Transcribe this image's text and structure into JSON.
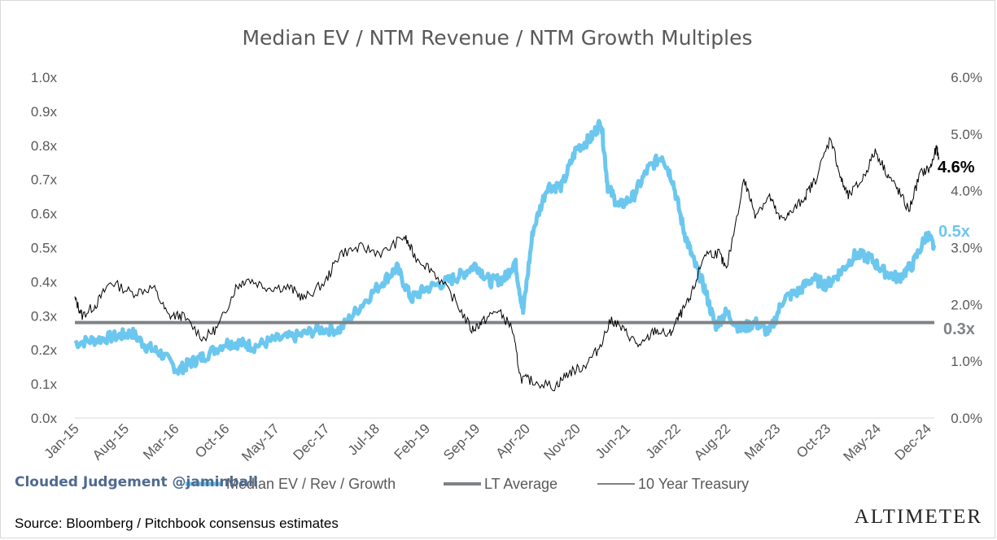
{
  "chart_data": {
    "type": "line",
    "title": "Median EV / NTM Revenue / NTM Growth Multiples",
    "left_axis": {
      "ticks": [
        "0.0x",
        "0.1x",
        "0.2x",
        "0.3x",
        "0.4x",
        "0.5x",
        "0.6x",
        "0.7x",
        "0.8x",
        "0.9x",
        "1.0x"
      ],
      "min": 0,
      "max": 1.0
    },
    "right_axis": {
      "ticks": [
        "0.0%",
        "1.0%",
        "2.0%",
        "3.0%",
        "4.0%",
        "5.0%",
        "6.0%"
      ],
      "min": 0,
      "max": 6.0
    },
    "x_labels": [
      "Jan-15",
      "Aug-15",
      "Mar-16",
      "Oct-16",
      "May-17",
      "Dec-17",
      "Jul-18",
      "Feb-19",
      "Sep-19",
      "Apr-20",
      "Nov-20",
      "Jun-21",
      "Jan-22",
      "Aug-22",
      "Mar-23",
      "Oct-23",
      "May-24",
      "Dec-24"
    ],
    "x_range": [
      "2015-01",
      "2025-01"
    ],
    "series": [
      {
        "name": "Median EV / Rev / Growth",
        "axis": "left",
        "color": "#6cc7ef",
        "points": [
          [
            "2015-01-01",
            0.22
          ],
          [
            "2015-04-01",
            0.23
          ],
          [
            "2015-07-01",
            0.24
          ],
          [
            "2015-09-01",
            0.25
          ],
          [
            "2015-11-01",
            0.21
          ],
          [
            "2016-01-01",
            0.19
          ],
          [
            "2016-03-15",
            0.14
          ],
          [
            "2016-05-01",
            0.16
          ],
          [
            "2016-07-01",
            0.18
          ],
          [
            "2016-10-01",
            0.22
          ],
          [
            "2016-12-01",
            0.22
          ],
          [
            "2017-02-01",
            0.21
          ],
          [
            "2017-05-01",
            0.23
          ],
          [
            "2017-08-01",
            0.24
          ],
          [
            "2017-11-01",
            0.26
          ],
          [
            "2018-02-01",
            0.26
          ],
          [
            "2018-05-01",
            0.33
          ],
          [
            "2018-08-01",
            0.4
          ],
          [
            "2018-10-01",
            0.44
          ],
          [
            "2018-12-01",
            0.35
          ],
          [
            "2019-02-01",
            0.38
          ],
          [
            "2019-05-01",
            0.4
          ],
          [
            "2019-07-01",
            0.42
          ],
          [
            "2019-09-01",
            0.45
          ],
          [
            "2019-11-01",
            0.4
          ],
          [
            "2020-01-01",
            0.41
          ],
          [
            "2020-02-15",
            0.46
          ],
          [
            "2020-03-20",
            0.31
          ],
          [
            "2020-05-01",
            0.55
          ],
          [
            "2020-07-01",
            0.68
          ],
          [
            "2020-09-01",
            0.68
          ],
          [
            "2020-11-01",
            0.79
          ],
          [
            "2021-01-01",
            0.82
          ],
          [
            "2021-02-15",
            0.87
          ],
          [
            "2021-03-15",
            0.68
          ],
          [
            "2021-05-01",
            0.62
          ],
          [
            "2021-07-01",
            0.65
          ],
          [
            "2021-09-01",
            0.73
          ],
          [
            "2021-11-01",
            0.77
          ],
          [
            "2021-12-15",
            0.7
          ],
          [
            "2022-02-01",
            0.55
          ],
          [
            "2022-03-15",
            0.46
          ],
          [
            "2022-05-01",
            0.38
          ],
          [
            "2022-06-15",
            0.27
          ],
          [
            "2022-08-01",
            0.31
          ],
          [
            "2022-10-01",
            0.26
          ],
          [
            "2022-12-01",
            0.28
          ],
          [
            "2023-02-01",
            0.25
          ],
          [
            "2023-04-01",
            0.35
          ],
          [
            "2023-06-01",
            0.37
          ],
          [
            "2023-08-01",
            0.41
          ],
          [
            "2023-10-01",
            0.39
          ],
          [
            "2023-12-01",
            0.43
          ],
          [
            "2024-02-01",
            0.48
          ],
          [
            "2024-04-01",
            0.47
          ],
          [
            "2024-06-01",
            0.43
          ],
          [
            "2024-08-01",
            0.41
          ],
          [
            "2024-10-01",
            0.45
          ],
          [
            "2024-12-01",
            0.54
          ],
          [
            "2025-01-01",
            0.5
          ]
        ]
      },
      {
        "name": "LT Average",
        "axis": "left",
        "color": "#7f8386",
        "value": 0.28
      },
      {
        "name": "10 Year Treasury",
        "axis": "right",
        "color": "#000000",
        "points": [
          [
            "2015-01-01",
            2.1
          ],
          [
            "2015-02-01",
            1.8
          ],
          [
            "2015-04-01",
            2.0
          ],
          [
            "2015-06-01",
            2.4
          ],
          [
            "2015-09-01",
            2.2
          ],
          [
            "2015-12-01",
            2.3
          ],
          [
            "2016-02-01",
            1.8
          ],
          [
            "2016-04-01",
            1.8
          ],
          [
            "2016-07-01",
            1.4
          ],
          [
            "2016-09-01",
            1.6
          ],
          [
            "2016-11-15",
            2.3
          ],
          [
            "2017-01-01",
            2.45
          ],
          [
            "2017-04-01",
            2.3
          ],
          [
            "2017-07-01",
            2.3
          ],
          [
            "2017-09-01",
            2.1
          ],
          [
            "2017-12-01",
            2.4
          ],
          [
            "2018-02-01",
            2.9
          ],
          [
            "2018-05-01",
            3.0
          ],
          [
            "2018-08-01",
            2.9
          ],
          [
            "2018-11-01",
            3.2
          ],
          [
            "2018-12-15",
            2.85
          ],
          [
            "2019-03-01",
            2.6
          ],
          [
            "2019-06-01",
            2.1
          ],
          [
            "2019-08-15",
            1.55
          ],
          [
            "2019-10-01",
            1.7
          ],
          [
            "2019-12-01",
            1.9
          ],
          [
            "2020-02-01",
            1.6
          ],
          [
            "2020-03-10",
            0.7
          ],
          [
            "2020-05-01",
            0.65
          ],
          [
            "2020-08-01",
            0.55
          ],
          [
            "2020-10-01",
            0.8
          ],
          [
            "2020-12-01",
            0.9
          ],
          [
            "2021-02-01",
            1.2
          ],
          [
            "2021-03-31",
            1.74
          ],
          [
            "2021-06-01",
            1.5
          ],
          [
            "2021-08-01",
            1.25
          ],
          [
            "2021-10-01",
            1.55
          ],
          [
            "2021-12-01",
            1.45
          ],
          [
            "2022-01-15",
            1.8
          ],
          [
            "2022-03-01",
            2.1
          ],
          [
            "2022-05-01",
            2.9
          ],
          [
            "2022-07-01",
            2.9
          ],
          [
            "2022-08-01",
            2.6
          ],
          [
            "2022-10-15",
            4.2
          ],
          [
            "2022-12-01",
            3.6
          ],
          [
            "2023-02-01",
            3.9
          ],
          [
            "2023-03-15",
            3.5
          ],
          [
            "2023-05-01",
            3.6
          ],
          [
            "2023-07-01",
            3.9
          ],
          [
            "2023-08-15",
            4.2
          ],
          [
            "2023-10-19",
            4.95
          ],
          [
            "2023-12-01",
            4.2
          ],
          [
            "2024-01-01",
            3.9
          ],
          [
            "2024-03-01",
            4.2
          ],
          [
            "2024-04-25",
            4.7
          ],
          [
            "2024-06-15",
            4.3
          ],
          [
            "2024-08-01",
            4.0
          ],
          [
            "2024-09-15",
            3.65
          ],
          [
            "2024-11-01",
            4.3
          ],
          [
            "2024-12-15",
            4.4
          ],
          [
            "2025-01-10",
            4.75
          ],
          [
            "2025-01-20",
            4.6
          ]
        ]
      }
    ],
    "end_labels": {
      "treasury": "4.6%",
      "multiple": "0.5x",
      "average": "0.3x"
    },
    "legend_position": "bottom",
    "grid": false
  },
  "legend": [
    {
      "label": "Median EV / Rev / Growth"
    },
    {
      "label": "LT Average"
    },
    {
      "label": "10 Year Treasury"
    }
  ],
  "footer": {
    "credit": "Clouded Judgement @jaminball",
    "source": "Source: Bloomberg / Pitchbook consensus estimates",
    "brand": "ALTIMETER"
  }
}
